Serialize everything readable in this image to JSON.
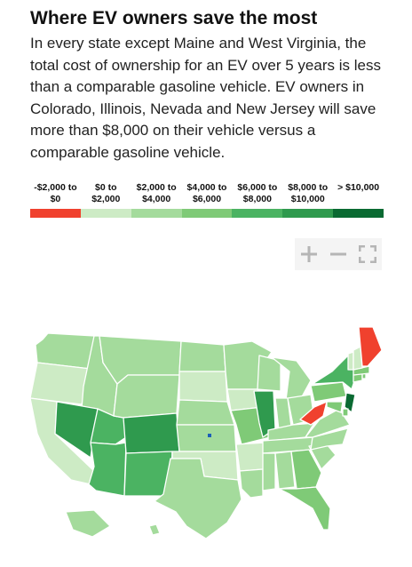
{
  "header": {
    "title": "Where EV owners save the most",
    "subtitle": "In every state except Maine and West Virginia, the total cost of ownership for an EV over 5 years is less than a comparable gasoline vehicle. EV owners in Colorado, Illinois, Nevada and New Jersey will save more than $8,000 on their vehicle versus a comparable gasoline vehicle."
  },
  "legend": {
    "bins": [
      {
        "label": "-$2,000 to $0",
        "color": "#f0412e"
      },
      {
        "label": "$0 to $2,000",
        "color": "#cdebc5"
      },
      {
        "label": "$2,000 to $4,000",
        "color": "#a4db9c"
      },
      {
        "label": "$4,000 to $6,000",
        "color": "#7fca77"
      },
      {
        "label": "$6,000 to $8,000",
        "color": "#4bb362"
      },
      {
        "label": "$8,000 to $10,000",
        "color": "#2f9a4e"
      },
      {
        "label": "> $10,000",
        "color": "#0a6a32"
      }
    ]
  },
  "controls": {
    "zoom_in": "plus-icon",
    "zoom_out": "minus-icon",
    "fullscreen": "fullscreen-icon"
  },
  "map": {
    "region": "United States",
    "states": [
      {
        "code": "WA",
        "bin": 2
      },
      {
        "code": "OR",
        "bin": 1
      },
      {
        "code": "CA",
        "bin": 1
      },
      {
        "code": "ID",
        "bin": 2
      },
      {
        "code": "NV",
        "bin": 5
      },
      {
        "code": "UT",
        "bin": 4
      },
      {
        "code": "AZ",
        "bin": 4
      },
      {
        "code": "MT",
        "bin": 2
      },
      {
        "code": "WY",
        "bin": 2
      },
      {
        "code": "CO",
        "bin": 5
      },
      {
        "code": "NM",
        "bin": 4
      },
      {
        "code": "ND",
        "bin": 2
      },
      {
        "code": "SD",
        "bin": 1
      },
      {
        "code": "NE",
        "bin": 2
      },
      {
        "code": "KS",
        "bin": 2
      },
      {
        "code": "OK",
        "bin": 1
      },
      {
        "code": "TX",
        "bin": 2
      },
      {
        "code": "MN",
        "bin": 2
      },
      {
        "code": "IA",
        "bin": 1
      },
      {
        "code": "MO",
        "bin": 3
      },
      {
        "code": "AR",
        "bin": 1
      },
      {
        "code": "LA",
        "bin": 2
      },
      {
        "code": "WI",
        "bin": 2
      },
      {
        "code": "IL",
        "bin": 5
      },
      {
        "code": "MI",
        "bin": 2
      },
      {
        "code": "IN",
        "bin": 2
      },
      {
        "code": "OH",
        "bin": 2
      },
      {
        "code": "KY",
        "bin": 2
      },
      {
        "code": "TN",
        "bin": 2
      },
      {
        "code": "MS",
        "bin": 2
      },
      {
        "code": "AL",
        "bin": 2
      },
      {
        "code": "GA",
        "bin": 3
      },
      {
        "code": "FL",
        "bin": 3
      },
      {
        "code": "SC",
        "bin": 2
      },
      {
        "code": "NC",
        "bin": 2
      },
      {
        "code": "VA",
        "bin": 2
      },
      {
        "code": "WV",
        "bin": 0
      },
      {
        "code": "PA",
        "bin": 3
      },
      {
        "code": "NY",
        "bin": 4
      },
      {
        "code": "NJ",
        "bin": 6
      },
      {
        "code": "DE",
        "bin": 3
      },
      {
        "code": "MD",
        "bin": 3
      },
      {
        "code": "CT",
        "bin": 3
      },
      {
        "code": "RI",
        "bin": 3
      },
      {
        "code": "MA",
        "bin": 3
      },
      {
        "code": "VT",
        "bin": 1
      },
      {
        "code": "NH",
        "bin": 1
      },
      {
        "code": "ME",
        "bin": 0
      },
      {
        "code": "AK",
        "bin": 2
      },
      {
        "code": "HI",
        "bin": 2
      }
    ]
  }
}
